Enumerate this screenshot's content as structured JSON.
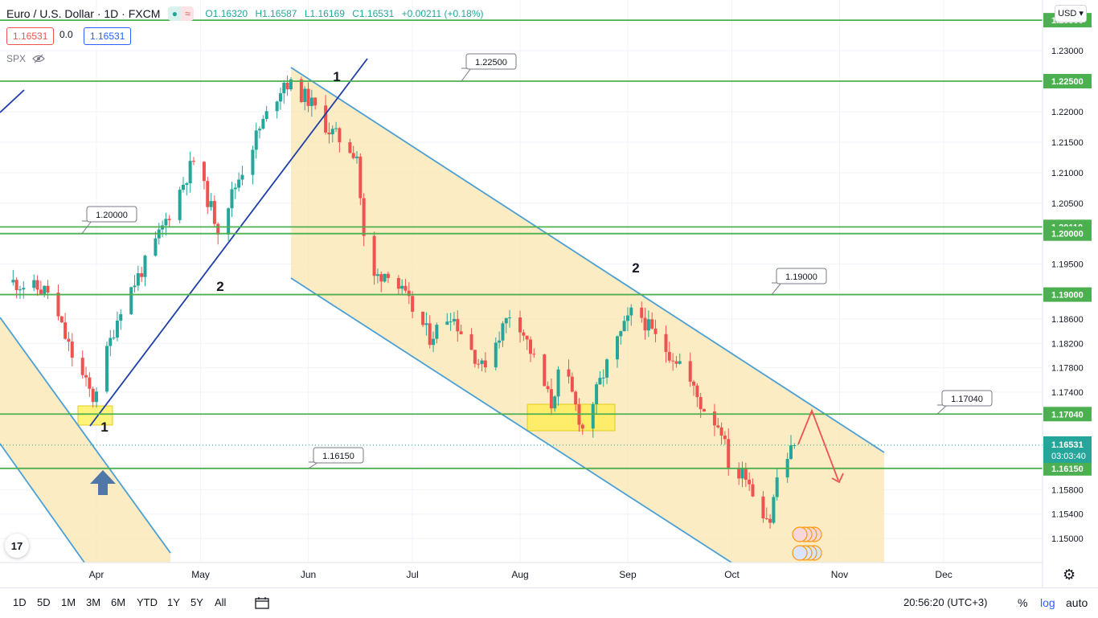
{
  "header": {
    "symbol": "Euro / U.S. Dollar · 1D · FXCM",
    "ohlc": {
      "o": "O1.16320",
      "h": "H1.16587",
      "l": "L1.16169",
      "c": "C1.16531",
      "chg": "+0.00211 (+0.18%)"
    },
    "sell_price": "1.16531",
    "spread": "0.0",
    "buy_price": "1.16531",
    "indicator": "SPX",
    "currency": "USD"
  },
  "bottom_bar": {
    "timeframes": [
      "1D",
      "5D",
      "1M",
      "3M",
      "6M",
      "YTD",
      "1Y",
      "5Y",
      "All"
    ],
    "clock": "20:56:20 (UTC+3)",
    "percent": "%",
    "log": "log",
    "auto": "auto"
  },
  "colors": {
    "up": "#26a69a",
    "down": "#ef5350",
    "level": "#4caf50",
    "channel": "#4a9fd5",
    "trend": "#1e3fa8",
    "zone": "#fbe5b0"
  },
  "chart_data": {
    "type": "candlestick",
    "price_axis": {
      "min": 1.148,
      "max": 1.236
    },
    "y_ticks": [
      "1.23000",
      "1.22000",
      "1.21500",
      "1.21000",
      "1.20500",
      "1.19500",
      "1.18600",
      "1.18200",
      "1.17800",
      "1.17400",
      "1.15800",
      "1.15400",
      "1.15000"
    ],
    "x_ticks": [
      "Apr",
      "May",
      "Jun",
      "Jul",
      "Aug",
      "Sep",
      "Oct",
      "Nov",
      "Dec"
    ],
    "levels": [
      {
        "value": 1.235,
        "label": "1.23500"
      },
      {
        "value": 1.225,
        "label": "1.22500",
        "callout": "1.22500"
      },
      {
        "value": 1.2011,
        "label": "1.20110"
      },
      {
        "value": 1.2,
        "label": "1.20000",
        "callout": "1.20000"
      },
      {
        "value": 1.19,
        "label": "1.19000",
        "callout": "1.19000"
      },
      {
        "value": 1.1704,
        "label": "1.17040",
        "callout": "1.17040"
      },
      {
        "value": 1.1615,
        "label": "1.16150",
        "callout": "1.16150"
      }
    ],
    "current_price": {
      "value": 1.16531,
      "label": "1.16531",
      "countdown": "03:03:40"
    },
    "wave_labels": [
      "1",
      "2",
      "1",
      "2"
    ],
    "anchors": [
      {
        "date": "Mar 8",
        "close": 1.192
      },
      {
        "date": "Mar 18",
        "close": 1.1905
      },
      {
        "date": "Mar 25",
        "close": 1.18
      },
      {
        "date": "Mar 31",
        "close": 1.173
      },
      {
        "date": "Apr 8",
        "close": 1.188
      },
      {
        "date": "Apr 16",
        "close": 1.196
      },
      {
        "date": "Apr 29",
        "close": 1.212
      },
      {
        "date": "May 6",
        "close": 1.201
      },
      {
        "date": "May 17",
        "close": 1.216
      },
      {
        "date": "May 25",
        "close": 1.225
      },
      {
        "date": "Jun 1",
        "close": 1.222
      },
      {
        "date": "Jun 7",
        "close": 1.217
      },
      {
        "date": "Jun 15",
        "close": 1.213
      },
      {
        "date": "Jun 18",
        "close": 1.192
      },
      {
        "date": "Jun 24",
        "close": 1.194
      },
      {
        "date": "Jul 6",
        "close": 1.183
      },
      {
        "date": "Jul 12",
        "close": 1.187
      },
      {
        "date": "Jul 21",
        "close": 1.178
      },
      {
        "date": "Jul 30",
        "close": 1.188
      },
      {
        "date": "Aug 10",
        "close": 1.172
      },
      {
        "date": "Aug 13",
        "close": 1.179
      },
      {
        "date": "Aug 19",
        "close": 1.168
      },
      {
        "date": "Aug 27",
        "close": 1.18
      },
      {
        "date": "Sep 3",
        "close": 1.188
      },
      {
        "date": "Sep 10",
        "close": 1.182
      },
      {
        "date": "Sep 16",
        "close": 1.179
      },
      {
        "date": "Sep 22",
        "close": 1.172
      },
      {
        "date": "Sep 28",
        "close": 1.168
      },
      {
        "date": "Oct 1",
        "close": 1.1595
      },
      {
        "date": "Oct 5",
        "close": 1.161
      },
      {
        "date": "Oct 8",
        "close": 1.156
      },
      {
        "date": "Oct 12",
        "close": 1.153
      },
      {
        "date": "Oct 14",
        "close": 1.16
      },
      {
        "date": "Oct 19",
        "close": 1.1653
      }
    ]
  }
}
